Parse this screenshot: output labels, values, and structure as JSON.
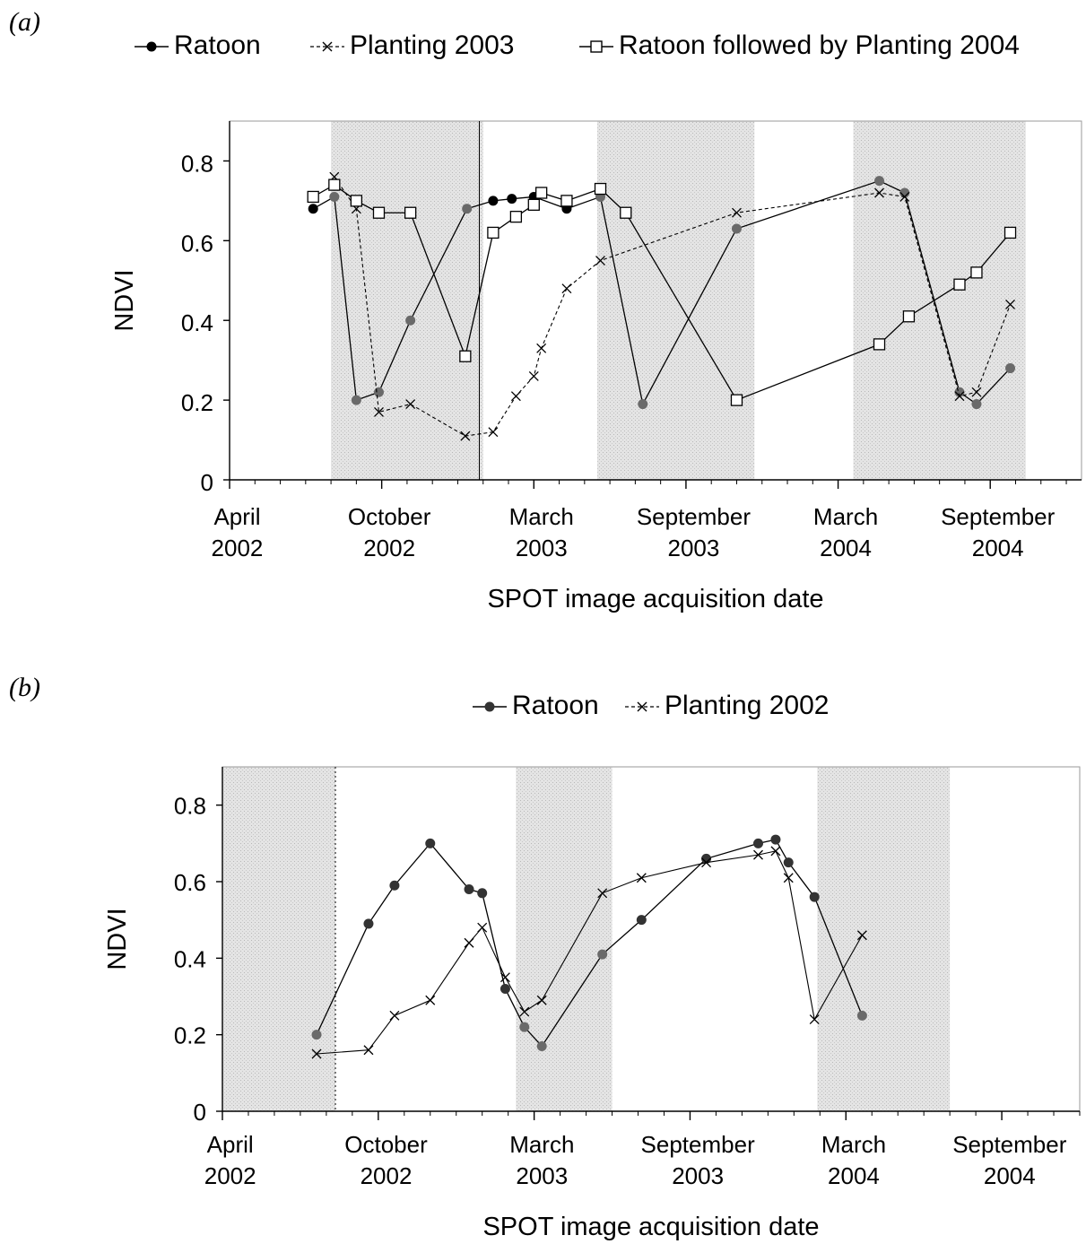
{
  "chart_data": [
    {
      "type": "line",
      "panel_label": "(a)",
      "xlabel": "SPOT image acquisition date",
      "ylabel": "NDVI",
      "ylim": [
        0,
        0.9
      ],
      "y_ticks": [
        "0",
        "0.2",
        "0.4",
        "0.6",
        "0.8"
      ],
      "x_ticks": [
        {
          "line1": "April",
          "line2": "2002"
        },
        {
          "line1": "October",
          "line2": "2002"
        },
        {
          "line1": "March",
          "line2": "2003"
        },
        {
          "line1": "September",
          "line2": "2003"
        },
        {
          "line1": "March",
          "line2": "2004"
        },
        {
          "line1": "September",
          "line2": "2004"
        }
      ],
      "legend_placement": "top",
      "grid": false,
      "series": [
        {
          "name": "Ratoon",
          "marker": "filled-circle",
          "points": [
            {
              "x": "2002-07-10",
              "y": 0.68
            },
            {
              "x": "2002-08-05",
              "y": 0.71
            },
            {
              "x": "2002-09-01",
              "y": 0.2
            },
            {
              "x": "2002-09-28",
              "y": 0.22
            },
            {
              "x": "2002-11-05",
              "y": 0.4
            },
            {
              "x": "2003-01-12",
              "y": 0.68
            },
            {
              "x": "2003-02-13",
              "y": 0.7
            },
            {
              "x": "2003-03-05",
              "y": 0.705
            },
            {
              "x": "2003-04-01",
              "y": 0.71
            },
            {
              "x": "2003-05-10",
              "y": 0.68
            },
            {
              "x": "2003-06-20",
              "y": 0.71
            },
            {
              "x": "2003-08-10",
              "y": 0.19
            },
            {
              "x": "2003-12-01",
              "y": 0.63
            },
            {
              "x": "2004-05-20",
              "y": 0.75
            },
            {
              "x": "2004-06-20",
              "y": 0.72
            },
            {
              "x": "2004-08-25",
              "y": 0.22
            },
            {
              "x": "2004-09-15",
              "y": 0.19
            },
            {
              "x": "2004-10-25",
              "y": 0.28
            }
          ]
        },
        {
          "name": "Planting 2003",
          "marker": "cross",
          "points": [
            {
              "x": "2002-08-05",
              "y": 0.76
            },
            {
              "x": "2002-09-01",
              "y": 0.68
            },
            {
              "x": "2002-09-28",
              "y": 0.17
            },
            {
              "x": "2002-11-05",
              "y": 0.19
            },
            {
              "x": "2003-01-10",
              "y": 0.11
            },
            {
              "x": "2003-02-13",
              "y": 0.12
            },
            {
              "x": "2003-03-10",
              "y": 0.21
            },
            {
              "x": "2003-04-01",
              "y": 0.26
            },
            {
              "x": "2003-04-10",
              "y": 0.33
            },
            {
              "x": "2003-05-10",
              "y": 0.48
            },
            {
              "x": "2003-06-20",
              "y": 0.55
            },
            {
              "x": "2003-12-01",
              "y": 0.67
            },
            {
              "x": "2004-05-20",
              "y": 0.72
            },
            {
              "x": "2004-06-20",
              "y": 0.71
            },
            {
              "x": "2004-08-25",
              "y": 0.21
            },
            {
              "x": "2004-09-15",
              "y": 0.22
            },
            {
              "x": "2004-10-25",
              "y": 0.44
            }
          ]
        },
        {
          "name": "Ratoon followed by Planting 2004",
          "marker": "open-square",
          "points": [
            {
              "x": "2002-07-10",
              "y": 0.71
            },
            {
              "x": "2002-08-05",
              "y": 0.74
            },
            {
              "x": "2002-09-01",
              "y": 0.7
            },
            {
              "x": "2002-09-28",
              "y": 0.67
            },
            {
              "x": "2002-11-05",
              "y": 0.67
            },
            {
              "x": "2003-01-10",
              "y": 0.31
            },
            {
              "x": "2003-02-13",
              "y": 0.62
            },
            {
              "x": "2003-03-10",
              "y": 0.66
            },
            {
              "x": "2003-04-01",
              "y": 0.69
            },
            {
              "x": "2003-04-10",
              "y": 0.72
            },
            {
              "x": "2003-05-10",
              "y": 0.7
            },
            {
              "x": "2003-06-20",
              "y": 0.73
            },
            {
              "x": "2003-07-20",
              "y": 0.67
            },
            {
              "x": "2003-12-01",
              "y": 0.2
            },
            {
              "x": "2004-05-20",
              "y": 0.34
            },
            {
              "x": "2004-06-25",
              "y": 0.41
            },
            {
              "x": "2004-08-25",
              "y": 0.49
            },
            {
              "x": "2004-09-15",
              "y": 0.52
            },
            {
              "x": "2004-10-25",
              "y": 0.62
            }
          ]
        }
      ]
    },
    {
      "type": "line",
      "panel_label": "(b)",
      "xlabel": "SPOT image acquisition date",
      "ylabel": "NDVI",
      "ylim": [
        0,
        0.9
      ],
      "y_ticks": [
        "0",
        "0.2",
        "0.4",
        "0.6",
        "0.8"
      ],
      "x_ticks": [
        {
          "line1": "April",
          "line2": "2002"
        },
        {
          "line1": "October",
          "line2": "2002"
        },
        {
          "line1": "March",
          "line2": "2003"
        },
        {
          "line1": "September",
          "line2": "2003"
        },
        {
          "line1": "March",
          "line2": "2004"
        },
        {
          "line1": "September",
          "line2": "2004"
        }
      ],
      "legend_placement": "top",
      "grid": false,
      "series": [
        {
          "name": "Ratoon",
          "marker": "filled-circle",
          "points": [
            {
              "x": "2002-07-20",
              "y": 0.2
            },
            {
              "x": "2002-09-20",
              "y": 0.49
            },
            {
              "x": "2002-10-20",
              "y": 0.59
            },
            {
              "x": "2002-12-01",
              "y": 0.7
            },
            {
              "x": "2003-01-16",
              "y": 0.58
            },
            {
              "x": "2003-02-01",
              "y": 0.57
            },
            {
              "x": "2003-02-28",
              "y": 0.32
            },
            {
              "x": "2003-03-20",
              "y": 0.22
            },
            {
              "x": "2003-04-10",
              "y": 0.17
            },
            {
              "x": "2003-06-20",
              "y": 0.41
            },
            {
              "x": "2003-08-05",
              "y": 0.5
            },
            {
              "x": "2003-10-20",
              "y": 0.66
            },
            {
              "x": "2003-12-20",
              "y": 0.7
            },
            {
              "x": "2004-01-10",
              "y": 0.71
            },
            {
              "x": "2004-01-25",
              "y": 0.65
            },
            {
              "x": "2004-02-25",
              "y": 0.56
            },
            {
              "x": "2004-04-20",
              "y": 0.25
            }
          ]
        },
        {
          "name": "Planting 2002",
          "marker": "cross",
          "points": [
            {
              "x": "2002-07-20",
              "y": 0.15
            },
            {
              "x": "2002-09-20",
              "y": 0.16
            },
            {
              "x": "2002-10-20",
              "y": 0.25
            },
            {
              "x": "2002-12-01",
              "y": 0.29
            },
            {
              "x": "2003-01-16",
              "y": 0.44
            },
            {
              "x": "2003-02-01",
              "y": 0.48
            },
            {
              "x": "2003-02-28",
              "y": 0.35
            },
            {
              "x": "2003-03-20",
              "y": 0.26
            },
            {
              "x": "2003-04-10",
              "y": 0.29
            },
            {
              "x": "2003-06-20",
              "y": 0.57
            },
            {
              "x": "2003-08-05",
              "y": 0.61
            },
            {
              "x": "2003-10-20",
              "y": 0.65
            },
            {
              "x": "2003-12-20",
              "y": 0.67
            },
            {
              "x": "2004-01-10",
              "y": 0.68
            },
            {
              "x": "2004-01-25",
              "y": 0.61
            },
            {
              "x": "2004-02-25",
              "y": 0.24
            },
            {
              "x": "2004-04-20",
              "y": 0.46
            }
          ]
        }
      ]
    }
  ]
}
